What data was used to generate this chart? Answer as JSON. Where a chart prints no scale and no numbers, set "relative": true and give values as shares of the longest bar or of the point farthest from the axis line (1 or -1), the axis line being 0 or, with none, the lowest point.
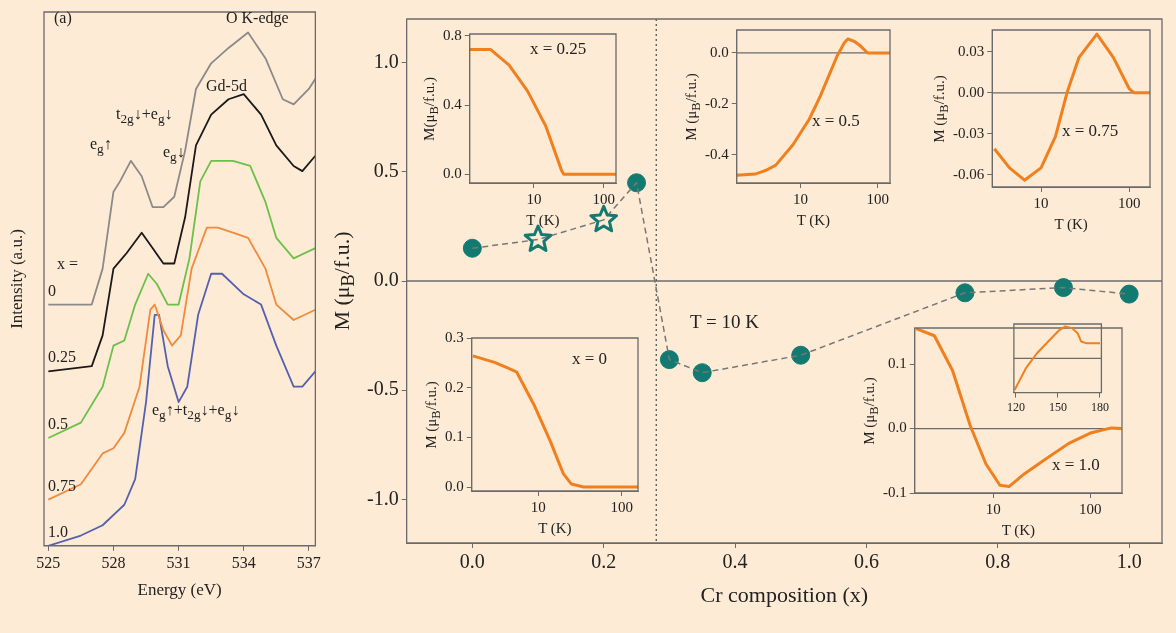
{
  "chart_data": [
    {
      "type": "line",
      "relative": true,
      "xlabel": "Energy (eV)",
      "ylabel": "Intensity (a.u.)",
      "xlim": [
        524.8,
        537.3
      ],
      "xticks": [
        525,
        528,
        531,
        534,
        537
      ],
      "tick_labels": "x",
      "annotations": [
        "(a)",
        "O K-edge",
        "Gd-5d",
        "e$_{g}$↑",
        "t$_{2g}$↓+e$_{g}$↓",
        "e$_{g}$↓",
        "e$_{g}$↑+t$_{2g}$↓+e$_{g}$↓",
        "x ="
      ],
      "series": [
        {
          "name": "0",
          "color": "#8a8a8a",
          "x": [
            525,
            527,
            527.5,
            528,
            528.3,
            528.8,
            529.3,
            529.8,
            530.3,
            530.8,
            531.3,
            531.8,
            532.5,
            533.3,
            534.2,
            535,
            535.8,
            536.3,
            537,
            537.3
          ],
          "values": [
            0.47,
            0.47,
            0.54,
            0.69,
            0.71,
            0.75,
            0.72,
            0.66,
            0.66,
            0.68,
            0.77,
            0.89,
            0.94,
            0.97,
            1.0,
            0.95,
            0.87,
            0.86,
            0.89,
            0.91
          ]
        },
        {
          "name": "0.25",
          "color": "#1a1a1a",
          "x": [
            525,
            527,
            527.5,
            528,
            528.6,
            529.3,
            529.8,
            530.3,
            530.8,
            531.3,
            531.8,
            532.5,
            533.3,
            534,
            534.8,
            535.5,
            536.3,
            536.7,
            537.3
          ],
          "values": [
            0.34,
            0.35,
            0.41,
            0.54,
            0.57,
            0.61,
            0.58,
            0.55,
            0.55,
            0.64,
            0.78,
            0.84,
            0.87,
            0.88,
            0.84,
            0.78,
            0.74,
            0.73,
            0.76
          ]
        },
        {
          "name": "0.5",
          "color": "#6cc04a",
          "x": [
            525,
            526.5,
            527.5,
            528,
            528.5,
            529,
            529.6,
            530,
            530.5,
            531,
            531.5,
            532,
            532.5,
            533.5,
            534.3,
            535,
            535.5,
            536.3,
            537.3
          ],
          "values": [
            0.21,
            0.24,
            0.31,
            0.39,
            0.4,
            0.47,
            0.53,
            0.51,
            0.47,
            0.47,
            0.56,
            0.71,
            0.75,
            0.75,
            0.74,
            0.67,
            0.6,
            0.56,
            0.58
          ]
        },
        {
          "name": "0.75",
          "color": "#f08a3c",
          "x": [
            525,
            526.5,
            527.5,
            528,
            528.5,
            529.2,
            529.7,
            529.9,
            530.3,
            530.7,
            531.1,
            531.6,
            532.3,
            532.8,
            533.5,
            534.2,
            535,
            535.5,
            536.3,
            537.3
          ],
          "values": [
            0.09,
            0.12,
            0.18,
            0.19,
            0.22,
            0.31,
            0.46,
            0.47,
            0.42,
            0.39,
            0.41,
            0.54,
            0.62,
            0.62,
            0.61,
            0.6,
            0.54,
            0.47,
            0.44,
            0.46
          ]
        },
        {
          "name": "1.0",
          "color": "#5560b0",
          "x": [
            525,
            526.5,
            527.5,
            528.5,
            529,
            529.5,
            529.9,
            530.1,
            530.5,
            531,
            531.4,
            531.9,
            532.5,
            533,
            534,
            534.8,
            535.5,
            536.3,
            536.7,
            537.3
          ],
          "values": [
            0,
            0.02,
            0.04,
            0.08,
            0.13,
            0.28,
            0.45,
            0.45,
            0.35,
            0.28,
            0.31,
            0.45,
            0.53,
            0.53,
            0.49,
            0.47,
            0.39,
            0.31,
            0.31,
            0.34
          ]
        }
      ]
    },
    {
      "type": "scatter",
      "xlabel": "Cr composition (x)",
      "ylabel": "M (μ$_{B}$/f.u.)",
      "xlim": [
        -0.1,
        1.05
      ],
      "ylim": [
        -1.2,
        1.2
      ],
      "xticks": [
        {
          "value": 0,
          "label": "0.0"
        },
        {
          "value": 0.2,
          "label": "0.2"
        },
        {
          "value": 0.4,
          "label": "0.4"
        },
        {
          "value": 0.6,
          "label": "0.6"
        },
        {
          "value": 0.8,
          "label": "0.8"
        },
        {
          "value": 1,
          "label": "1.0"
        }
      ],
      "yticks": [
        {
          "value": -1,
          "label": "-1.0"
        },
        {
          "value": -0.5,
          "label": "-0.5"
        },
        {
          "value": 0,
          "label": "0.0"
        },
        {
          "value": 0.5,
          "label": "0.5"
        },
        {
          "value": 1,
          "label": "1.0"
        }
      ],
      "ref_lines": [
        {
          "axis": "y",
          "value": 0,
          "color": "#6b6b6b"
        },
        {
          "axis": "x",
          "value": 0.28,
          "color": "#555555",
          "line_style": "dotted"
        }
      ],
      "annotations": [
        "T = 10 K"
      ],
      "series": [
        {
          "type": "line",
          "color": "#777777",
          "line_style": "dashed",
          "marker": "none",
          "x": [
            0,
            0.1,
            0.2,
            0.25,
            0.3,
            0.35,
            0.5,
            0.75,
            0.9,
            1.0
          ],
          "values": [
            0.15,
            0.19,
            0.28,
            0.45,
            -0.36,
            -0.42,
            -0.34,
            -0.054,
            -0.03,
            -0.06
          ]
        },
        {
          "color": "#137a72",
          "marker": "circle",
          "x": [
            0,
            0.25,
            0.3,
            0.35,
            0.5,
            0.75,
            0.9,
            1.0
          ],
          "values": [
            0.15,
            0.45,
            -0.36,
            -0.42,
            -0.34,
            -0.054,
            -0.03,
            -0.06
          ]
        },
        {
          "color": "#137a72",
          "marker": "star",
          "x": [
            0.1,
            0.2
          ],
          "values": [
            0.19,
            0.28
          ]
        }
      ]
    },
    {
      "type": "line",
      "log": "x",
      "xlabel": "T (K)",
      "ylabel": "M(μ$_{B}$/f.u.)",
      "xlim": [
        1.2,
        150
      ],
      "ylim": [
        -0.05,
        0.81
      ],
      "xticks": [
        10,
        100
      ],
      "yticks": [
        {
          "value": 0,
          "label": "0.0"
        },
        0.4,
        0.8
      ],
      "annotations": [
        "x = 0.25"
      ],
      "series": [
        {
          "color": "#f07f1e",
          "x": [
            1.2,
            2,
            2.4,
            4.4,
            8.1,
            14.7,
            25,
            26.7,
            40,
            80,
            150
          ],
          "values": [
            0.72,
            0.72,
            0.72,
            0.63,
            0.48,
            0.28,
            0.02,
            0,
            0,
            0,
            0
          ]
        }
      ]
    },
    {
      "type": "line",
      "log": "x",
      "xlabel": "T (K)",
      "ylabel": "M (μ$_{B}$/f.u.)",
      "xlim": [
        1.5,
        144
      ],
      "ylim": [
        -0.51,
        0.09
      ],
      "xticks": [
        10,
        100
      ],
      "yticks": [
        -0.4,
        -0.2,
        {
          "value": 0,
          "label": "0.0"
        }
      ],
      "annotations": [
        "x = 0.5"
      ],
      "ref_lines": [
        {
          "axis": "y",
          "value": 0,
          "color": "#6b6b6b"
        }
      ],
      "series": [
        {
          "color": "#f07f1e",
          "x": [
            1.5,
            2.6,
            3.6,
            4.8,
            8,
            13,
            18,
            24,
            30,
            37,
            41,
            50,
            60,
            74,
            100,
            144
          ],
          "values": [
            -0.48,
            -0.475,
            -0.46,
            -0.44,
            -0.36,
            -0.26,
            -0.17,
            -0.08,
            -0.01,
            0.04,
            0.055,
            0.045,
            0.027,
            0,
            0,
            0
          ]
        }
      ]
    },
    {
      "type": "line",
      "log": "x",
      "xlabel": "T (K)",
      "ylabel": "M (μ$_{B}$/f.u.)",
      "xlim": [
        2.8,
        172
      ],
      "ylim": [
        -0.069,
        0.046
      ],
      "xticks": [
        10,
        100
      ],
      "yticks": [
        -0.06,
        -0.03,
        {
          "value": 0,
          "label": "0.00"
        },
        0.03
      ],
      "annotations": [
        "x = 0.75"
      ],
      "ref_lines": [
        {
          "axis": "y",
          "value": 0,
          "color": "#6b6b6b"
        }
      ],
      "series": [
        {
          "color": "#f07f1e",
          "x": [
            2.96,
            4.4,
            6.5,
            10,
            14.6,
            19.7,
            27,
            43,
            66,
            100,
            113,
            172
          ],
          "values": [
            -0.041,
            -0.055,
            -0.064,
            -0.055,
            -0.032,
            0,
            0.026,
            0.043,
            0.026,
            0.003,
            0,
            0
          ]
        }
      ]
    },
    {
      "type": "line",
      "log": "x",
      "xlabel": "T (K)",
      "ylabel": "M (μ$_{B}$/f.u.)",
      "xlim": [
        1.6,
        157
      ],
      "ylim": [
        -0.008,
        0.3
      ],
      "xticks": [
        10,
        100
      ],
      "yticks": [
        {
          "value": 0,
          "label": "0.0"
        },
        0.1,
        0.2,
        0.3
      ],
      "annotations": [
        "x = 0"
      ],
      "series": [
        {
          "color": "#f07f1e",
          "x": [
            1.65,
            3,
            5.5,
            9,
            14,
            20,
            25,
            35,
            80,
            157
          ],
          "values": [
            0.264,
            0.251,
            0.232,
            0.164,
            0.092,
            0.027,
            0.006,
            0,
            0,
            0
          ]
        }
      ]
    },
    {
      "type": "line",
      "log": "x",
      "xlabel": "T (K)",
      "ylabel": "M (μ$_{B}$/f.u.)",
      "xlim": [
        1.55,
        212
      ],
      "ylim": [
        -0.1,
        0.156
      ],
      "xticks": [
        10,
        100
      ],
      "yticks": [
        -0.1,
        {
          "value": 0,
          "label": "0.0"
        },
        0.1
      ],
      "annotations": [
        "x = 1.0"
      ],
      "ref_lines": [
        {
          "axis": "y",
          "value": 0,
          "color": "#6b6b6b"
        }
      ],
      "series": [
        {
          "color": "#f07f1e",
          "x": [
            1.6,
            2.47,
            3.8,
            5.8,
            8.4,
            11.7,
            14.5,
            21,
            35,
            60,
            100,
            165,
            212
          ],
          "values": [
            0.155,
            0.144,
            0.09,
            0.004,
            -0.055,
            -0.088,
            -0.09,
            -0.07,
            -0.047,
            -0.023,
            -0.007,
            0.001,
            0
          ]
        }
      ]
    },
    {
      "type": "line",
      "relative": true,
      "xlim": [
        118.5,
        181
      ],
      "xticks": [
        120,
        150,
        180
      ],
      "tick_labels": "x",
      "ref_lines": [
        {
          "axis": "y",
          "value": 0,
          "color": "#6b6b6b"
        }
      ],
      "series": [
        {
          "color": "#f07f1e",
          "x": [
            119,
            127,
            135,
            143,
            151,
            155,
            160,
            164,
            166.5,
            170.5,
            180
          ],
          "values": [
            -1,
            -0.32,
            0.16,
            0.53,
            0.89,
            1,
            0.95,
            0.79,
            0.53,
            0.47,
            0.47
          ]
        }
      ]
    }
  ]
}
